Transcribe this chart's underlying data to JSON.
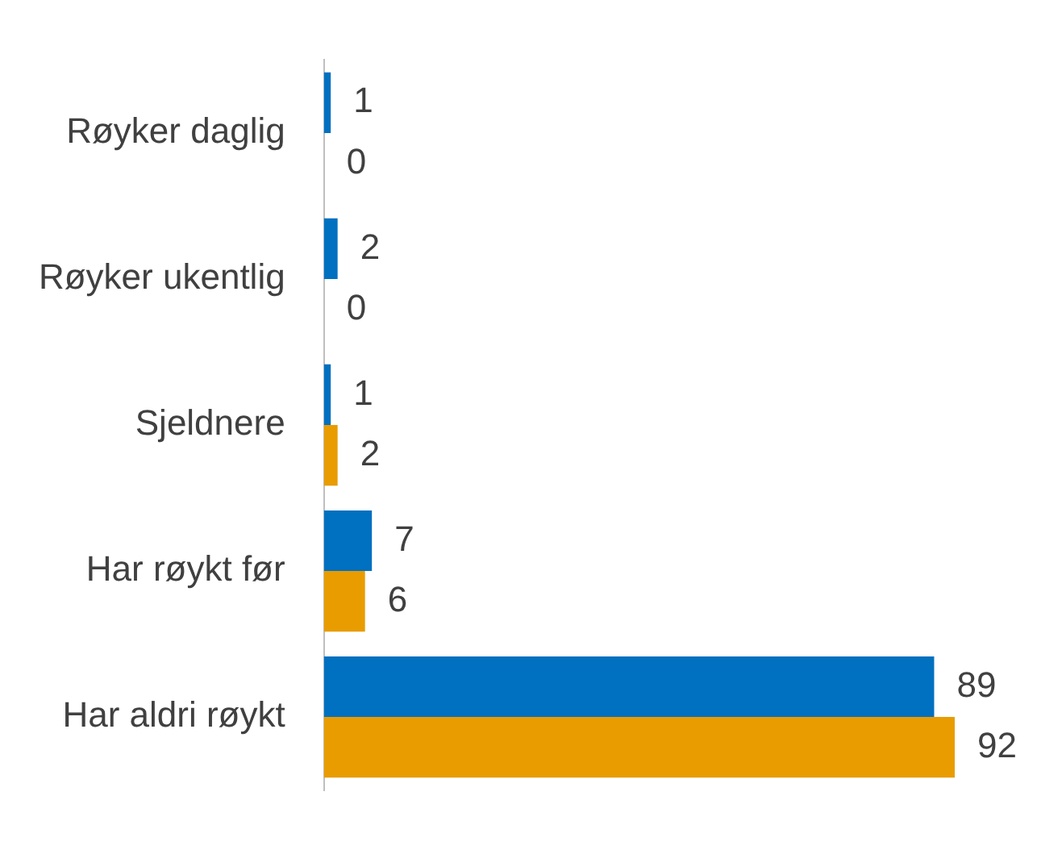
{
  "chart_data": {
    "type": "bar",
    "orientation": "horizontal",
    "categories": [
      "Røyker daglig",
      "Røyker ukentlig",
      "Sjeldnere",
      "Har røykt før",
      "Har aldri røykt"
    ],
    "series": [
      {
        "color": "#0070c0",
        "values": [
          1,
          2,
          1,
          7,
          89
        ]
      },
      {
        "color": "#e89c00",
        "values": [
          0,
          0,
          2,
          6,
          92
        ]
      }
    ],
    "tick_labels": "y",
    "data_labels": true
  }
}
